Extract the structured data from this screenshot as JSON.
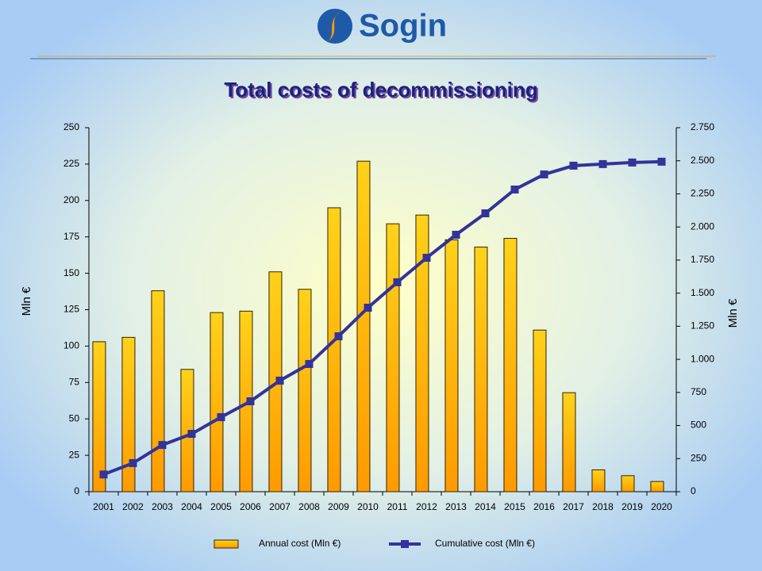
{
  "brand": "Sogin",
  "chart_data": {
    "type": "bar_line",
    "title": "Total costs of decommissioning",
    "ylabel": "Mln €",
    "y2label": "Mln €",
    "categories": [
      "2001",
      "2002",
      "2003",
      "2004",
      "2005",
      "2006",
      "2007",
      "2008",
      "2009",
      "2010",
      "2011",
      "2012",
      "2013",
      "2014",
      "2015",
      "2016",
      "2017",
      "2018",
      "2019",
      "2020"
    ],
    "series": [
      {
        "name": "Annual cost (Mln €)",
        "kind": "bar",
        "color": "#ffb800",
        "values": [
          103,
          106,
          138,
          84,
          123,
          124,
          151,
          139,
          195,
          227,
          184,
          190,
          173,
          168,
          174,
          111,
          68,
          15,
          11,
          7
        ]
      },
      {
        "name": "Cumulative cost (Mln €)",
        "kind": "line",
        "axis": "y2",
        "color": "#333399",
        "values": [
          130,
          216,
          353,
          437,
          563,
          683,
          839,
          965,
          1174,
          1390,
          1582,
          1767,
          1941,
          2103,
          2283,
          2397,
          2463,
          2475,
          2487,
          2493
        ]
      }
    ],
    "ylim": [
      0,
      250
    ],
    "yticks": [
      0,
      25,
      50,
      75,
      100,
      125,
      150,
      175,
      200,
      225,
      250
    ],
    "y2lim": [
      0,
      2750
    ],
    "y2ticks": [
      0,
      250,
      500,
      750,
      {
        "value": 1000,
        "label": "1.000"
      },
      {
        "value": 1250,
        "label": "1.250"
      },
      {
        "value": 1500,
        "label": "1.500"
      },
      {
        "value": 1750,
        "label": "1.750"
      },
      {
        "value": 2000,
        "label": "2.000"
      },
      {
        "value": 2250,
        "label": "2.250"
      },
      {
        "value": 2500,
        "label": "2.500"
      },
      {
        "value": 2750,
        "label": "2.750"
      }
    ],
    "legend": "bottom"
  }
}
